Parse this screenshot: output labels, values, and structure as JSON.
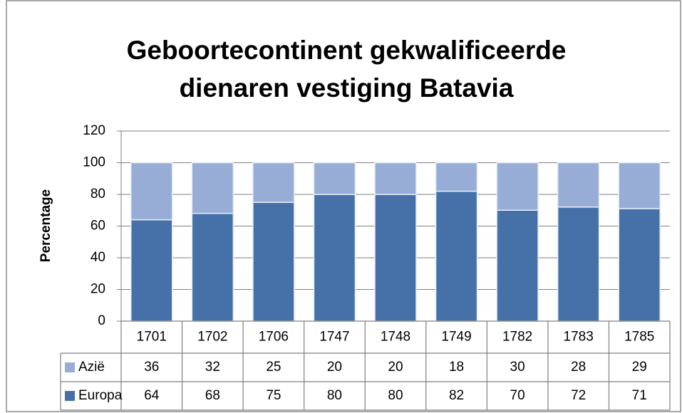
{
  "chart_data": {
    "type": "stacked_bar",
    "title": "Geboortecontinent gekwalificeerde dienaren vestiging Batavia",
    "ylabel": "Percentage",
    "categories": [
      "1701",
      "1702",
      "1706",
      "1747",
      "1748",
      "1749",
      "1782",
      "1783",
      "1785"
    ],
    "series": [
      {
        "name": "Azië",
        "color": "#98add6",
        "values": [
          36,
          32,
          25,
          20,
          20,
          18,
          30,
          28,
          29
        ]
      },
      {
        "name": "Europa",
        "color": "#4571a8",
        "values": [
          64,
          68,
          75,
          80,
          80,
          82,
          70,
          72,
          71
        ]
      }
    ],
    "ylim": [
      0,
      120
    ],
    "yticks": [
      0,
      20,
      40,
      60,
      80,
      100,
      120
    ],
    "grid": true,
    "data_table": true
  }
}
